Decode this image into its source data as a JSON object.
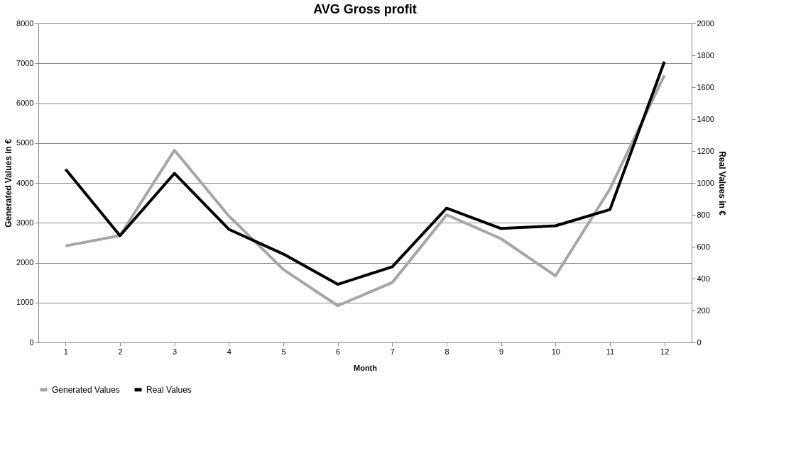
{
  "chart_data": {
    "type": "line",
    "title": "AVG Gross profit",
    "xlabel": "Month",
    "ylabel": "Generated Values in €",
    "y2label": "Real Values in €",
    "categories": [
      "1",
      "2",
      "3",
      "4",
      "5",
      "6",
      "7",
      "8",
      "9",
      "10",
      "11",
      "12"
    ],
    "series": [
      {
        "name": "Generated Values",
        "color": "#a6a6a6",
        "values": [
          2420,
          2680,
          4820,
          3170,
          1830,
          920,
          1500,
          3200,
          2600,
          1670,
          3850,
          6700
        ]
      },
      {
        "name": "Real Values",
        "color": "#000000",
        "axis": "y2",
        "values": [
          1086,
          669,
          1060,
          709,
          554,
          364,
          474,
          842,
          714,
          731,
          833,
          1760
        ]
      }
    ],
    "ylim": [
      0,
      8000
    ],
    "yticks": [
      0,
      1000,
      2000,
      3000,
      4000,
      5000,
      6000,
      7000,
      8000
    ],
    "y2lim": [
      0,
      2000
    ],
    "y2ticks": [
      0,
      200,
      400,
      600,
      800,
      1000,
      1200,
      1400,
      1600,
      1800,
      2000
    ],
    "grid": "y",
    "legend": "bottom",
    "marker": "none",
    "line_style": "solid"
  }
}
